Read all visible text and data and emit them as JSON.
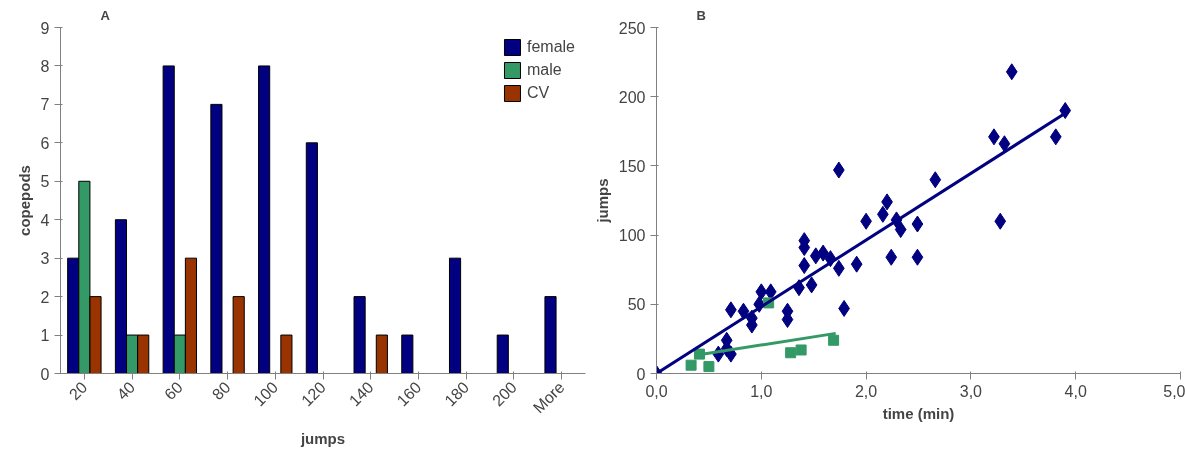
{
  "chart_data": [
    {
      "type": "bar",
      "title": "A",
      "xlabel": "jumps",
      "ylabel": "copepods",
      "categories": [
        "20",
        "40",
        "60",
        "80",
        "100",
        "120",
        "140",
        "160",
        "180",
        "200",
        "More"
      ],
      "series": [
        {
          "name": "female",
          "color": "#000080",
          "values": [
            3,
            4,
            8,
            7,
            8,
            6,
            2,
            1,
            3,
            1,
            2
          ]
        },
        {
          "name": "male",
          "color": "#339966",
          "values": [
            5,
            1,
            1,
            0,
            0,
            0,
            0,
            0,
            0,
            0,
            0
          ]
        },
        {
          "name": "CV",
          "color": "#993300",
          "values": [
            2,
            1,
            3,
            2,
            1,
            0,
            1,
            0,
            0,
            0,
            0
          ]
        }
      ],
      "ylim": [
        0,
        9
      ],
      "yticks": [
        0,
        1,
        2,
        3,
        4,
        5,
        6,
        7,
        8,
        9
      ],
      "legend": "top right",
      "grid": false
    },
    {
      "type": "scatter",
      "title": "B",
      "xlabel": "time (min)",
      "ylabel": "jumps",
      "xlim": [
        0,
        5
      ],
      "xticks": [
        {
          "value": 0,
          "label": "0,0"
        },
        {
          "value": 1,
          "label": "1,0"
        },
        {
          "value": 2,
          "label": "2,0"
        },
        {
          "value": 3,
          "label": "3,0"
        },
        {
          "value": 4,
          "label": "4,0"
        },
        {
          "value": 5,
          "label": "5,0"
        }
      ],
      "ylim": [
        0,
        250
      ],
      "yticks": [
        0,
        50,
        100,
        150,
        200,
        250
      ],
      "grid": false,
      "legend": false,
      "series": [
        {
          "type": "scatter",
          "marker": "diamond",
          "color": "#000080",
          "x": [
            0,
            0.71,
            0.83,
            0.91,
            0.91,
            1.0,
            1.09,
            0.98,
            1.25,
            1.25,
            0.67,
            0.67,
            0.59,
            0.71,
            1.36,
            1.48,
            1.41,
            1.41,
            1.41,
            1.52,
            1.59,
            1.66,
            1.74,
            1.91,
            1.79,
            1.74,
            2.0,
            2.16,
            2.2,
            2.29,
            2.33,
            2.24,
            2.49,
            2.49,
            2.66,
            3.39,
            3.9,
            3.22,
            3.32,
            3.81,
            3.28
          ],
          "values": [
            0,
            46,
            45,
            40,
            35,
            59,
            59,
            50,
            45,
            39,
            24,
            18,
            14,
            14,
            62,
            64,
            78,
            96,
            91,
            85,
            87,
            83,
            76,
            79,
            47,
            147,
            110,
            115,
            124,
            111,
            104,
            84,
            108,
            84,
            140,
            218,
            190,
            171,
            166,
            171,
            110
          ]
        },
        {
          "type": "scatter",
          "marker": "square",
          "color": "#339966",
          "x": [
            0.33,
            0.5,
            0.41,
            1.07,
            1.28,
            1.38,
            1.69
          ],
          "values": [
            6,
            5,
            14,
            51,
            15,
            17,
            24
          ]
        },
        {
          "type": "line",
          "color": "#000080",
          "x": [
            0,
            3.9
          ],
          "values": [
            0,
            188
          ]
        },
        {
          "type": "line",
          "color": "#339966",
          "x": [
            0.36,
            1.71
          ],
          "values": [
            13,
            29
          ]
        }
      ]
    }
  ]
}
